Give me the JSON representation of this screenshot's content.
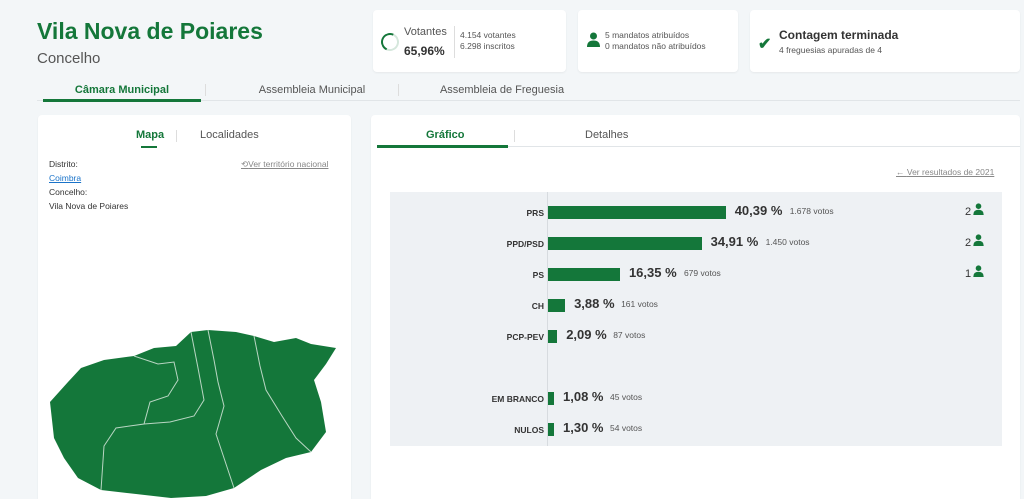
{
  "header": {
    "title": "Vila Nova de Poiares",
    "subtitle": "Concelho"
  },
  "stats": {
    "turnout": {
      "label": "Votantes",
      "value": "65,96%",
      "voters": "4.154 votantes",
      "registered": "6.298 inscritos",
      "fraction": 0.6596
    },
    "mandates": {
      "assigned": "5 mandatos atribuídos",
      "unassigned": "0 mandatos não atribuídos"
    },
    "count": {
      "title": "Contagem terminada",
      "detail": "4 freguesias apuradas de 4"
    }
  },
  "tabs": [
    "Câmara Municipal",
    "Assembleia Municipal",
    "Assembleia de Freguesia"
  ],
  "left_panel": {
    "tabs": [
      "Mapa",
      "Localidades"
    ],
    "district_label": "Distrito:",
    "district_value": "Coimbra",
    "county_label": "Concelho:",
    "county_value": "Vila Nova de Poiares",
    "national_link": "Ver território nacional"
  },
  "right_panel": {
    "tabs": [
      "Gráfico",
      "Detalhes"
    ],
    "previous_link": "Ver resultados de 2021"
  },
  "chart_data": {
    "type": "bar",
    "orientation": "horizontal",
    "categories": [
      "PRS",
      "PPD/PSD",
      "PS",
      "CH",
      "PCP-PEV",
      "EM BRANCO",
      "NULOS"
    ],
    "values": [
      40.39,
      34.91,
      16.35,
      3.88,
      2.09,
      1.08,
      1.3
    ],
    "pct_labels": [
      "40,39 %",
      "34,91 %",
      "16,35 %",
      "3,88 %",
      "2,09 %",
      "1,08 %",
      "1,30 %"
    ],
    "votes_labels": [
      "1.678 votos",
      "1.450 votos",
      "679 votos",
      "161 votos",
      "87 votos",
      "45 votos",
      "54 votos"
    ],
    "seats": [
      "2",
      "2",
      "1",
      "",
      "",
      "",
      ""
    ],
    "color": "#14773a"
  },
  "colors": {
    "accent": "#14773a",
    "link": "#1a73c9"
  },
  "icons": {
    "turnout": "progress-ring-icon",
    "mandates": "person-icon",
    "count": "check-icon",
    "reset": "reset-icon",
    "back": "arrow-left-icon"
  }
}
